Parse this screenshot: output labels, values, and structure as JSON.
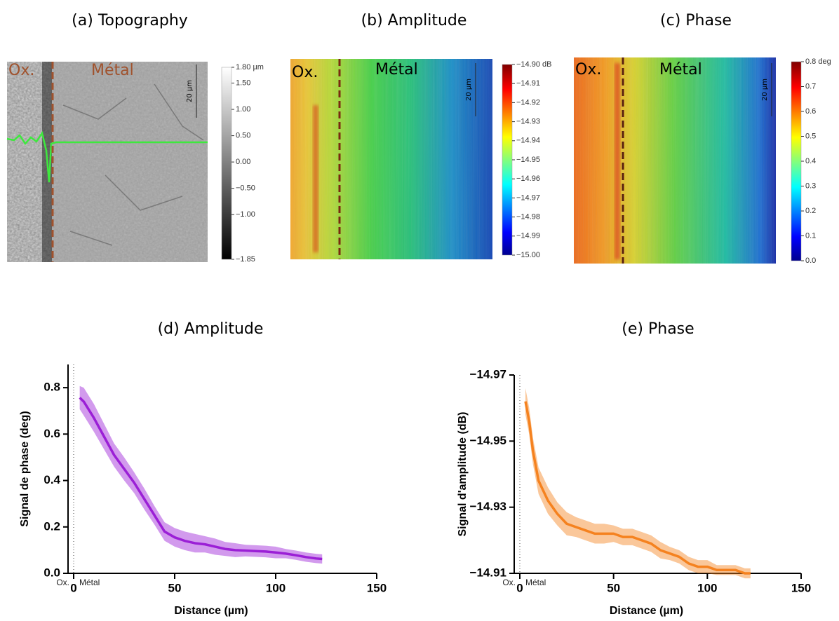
{
  "chart_data": [
    {
      "type": "heatmap",
      "title": "(a) Topography",
      "annotations": [
        "Ox.",
        "Métal"
      ],
      "scale_bar": "20 µm",
      "colormap": "gray",
      "clim": [
        -1.85,
        1.8
      ],
      "cticks": [
        {
          "value": 1.8,
          "label": "1.80 µm"
        },
        {
          "value": 1.5,
          "label": "1.50"
        },
        {
          "value": 1.0,
          "label": "1.00"
        },
        {
          "value": 0.5,
          "label": "0.50"
        },
        {
          "value": 0,
          "label": "0.00"
        },
        {
          "value": -0.5,
          "label": "−0.50"
        },
        {
          "value": -1.0,
          "label": "−1.00"
        },
        {
          "value": -1.85,
          "label": "−1.85"
        }
      ]
    },
    {
      "type": "heatmap",
      "title": "(b) Amplitude",
      "annotations": [
        "Ox.",
        "Métal"
      ],
      "scale_bar": "20 µm",
      "colormap": "jet",
      "clim": [
        -15.0,
        -14.9
      ],
      "cticks": [
        {
          "value": -14.9,
          "label": "−14.90 dB"
        },
        {
          "value": -14.91,
          "label": "−14.91"
        },
        {
          "value": -14.92,
          "label": "−14.92"
        },
        {
          "value": -14.93,
          "label": "−14.93"
        },
        {
          "value": -14.94,
          "label": "−14.94"
        },
        {
          "value": -14.95,
          "label": "−14.95"
        },
        {
          "value": -14.96,
          "label": "−14.96"
        },
        {
          "value": -14.97,
          "label": "−14.97"
        },
        {
          "value": -14.98,
          "label": "−14.98"
        },
        {
          "value": -14.99,
          "label": "−14.99"
        },
        {
          "value": -15.0,
          "label": "−15.00"
        }
      ]
    },
    {
      "type": "heatmap",
      "title": "(c) Phase",
      "annotations": [
        "Ox.",
        "Métal"
      ],
      "scale_bar": "20 µm",
      "colormap": "jet",
      "clim": [
        0,
        0.8
      ],
      "cticks": [
        {
          "value": 0.8,
          "label": "0.8 deg"
        },
        0.7,
        0.6,
        0.5,
        0.4,
        0.3,
        0.2,
        0.1,
        {
          "value": 0,
          "label": "0.0"
        }
      ]
    },
    {
      "type": "line",
      "title": "(d) Amplitude",
      "xlabel": "Distance (µm)",
      "ylabel": "Signal de phase (deg)",
      "annotations": [
        "Ox.",
        "Métal"
      ],
      "x": [
        3,
        5,
        10,
        15,
        20,
        25,
        30,
        35,
        40,
        45,
        50,
        55,
        60,
        65,
        70,
        75,
        80,
        85,
        90,
        95,
        100,
        105,
        110,
        115,
        120,
        123
      ],
      "series": [
        {
          "color": "#9b1fd6",
          "values": [
            0.757,
            0.74,
            0.67,
            0.59,
            0.51,
            0.45,
            0.39,
            0.32,
            0.25,
            0.18,
            0.155,
            0.14,
            0.13,
            0.125,
            0.115,
            0.105,
            0.1,
            0.098,
            0.096,
            0.094,
            0.09,
            0.085,
            0.078,
            0.07,
            0.064,
            0.062
          ],
          "errors": [
            0.05,
            0.06,
            0.06,
            0.055,
            0.05,
            0.05,
            0.045,
            0.045,
            0.04,
            0.04,
            0.04,
            0.04,
            0.04,
            0.035,
            0.035,
            0.03,
            0.03,
            0.025,
            0.025,
            0.025,
            0.025,
            0.02,
            0.02,
            0.02,
            0.02,
            0.02
          ]
        }
      ],
      "xlim": [
        0,
        150
      ],
      "ylim": [
        0,
        0.9
      ],
      "xticks": [
        0,
        50,
        100,
        150
      ],
      "yticks": [
        {
          "value": 0,
          "label": "0.0"
        },
        0.2,
        0.4,
        0.6,
        0.8
      ]
    },
    {
      "type": "line",
      "title": "(e) Phase",
      "xlabel": "Distance (µm)",
      "ylabel": "Signal d'amplitude (dB)",
      "annotations": [
        "Ox.",
        "Métal"
      ],
      "x": [
        3,
        5,
        7,
        10,
        15,
        20,
        25,
        30,
        35,
        40,
        45,
        50,
        55,
        60,
        65,
        70,
        75,
        80,
        85,
        90,
        95,
        100,
        105,
        110,
        115,
        120,
        123
      ],
      "series": [
        {
          "color": "#f5821f",
          "values": [
            -14.962,
            -14.956,
            -14.947,
            -14.938,
            -14.932,
            -14.928,
            -14.925,
            -14.924,
            -14.923,
            -14.922,
            -14.922,
            -14.922,
            -14.921,
            -14.921,
            -14.92,
            -14.919,
            -14.917,
            -14.916,
            -14.915,
            -14.913,
            -14.912,
            -14.912,
            -14.911,
            -14.911,
            -14.911,
            -14.91,
            -14.91
          ],
          "errors": [
            0.004,
            0.004,
            0.004,
            0.004,
            0.004,
            0.0035,
            0.0035,
            0.003,
            0.003,
            0.003,
            0.003,
            0.0025,
            0.0025,
            0.0025,
            0.0025,
            0.0025,
            0.0025,
            0.002,
            0.002,
            0.002,
            0.002,
            0.002,
            0.0015,
            0.0015,
            0.0015,
            0.0015,
            0.0015
          ]
        }
      ],
      "xlim": [
        0,
        150
      ],
      "ylim": [
        -14.91,
        -14.97
      ],
      "xticks": [
        0,
        50,
        100,
        150
      ],
      "yticks": [
        {
          "value": -14.97,
          "label": "−14.97"
        },
        {
          "value": -14.95,
          "label": "−14.95"
        },
        {
          "value": -14.93,
          "label": "−14.93"
        },
        {
          "value": -14.91,
          "label": "−14.91"
        }
      ]
    }
  ]
}
